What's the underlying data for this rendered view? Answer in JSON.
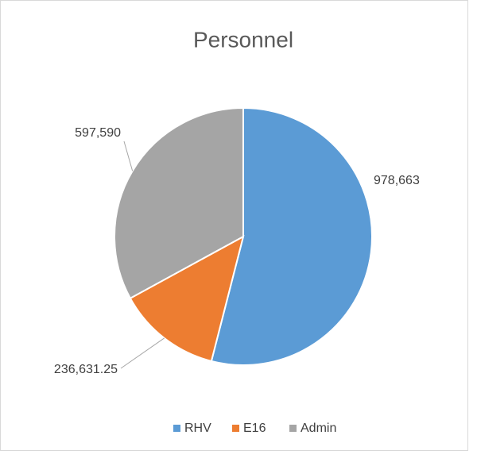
{
  "chart_data": {
    "type": "pie",
    "title": "Personnel",
    "categories": [
      "RHV",
      "E16",
      "Admin"
    ],
    "values": [
      978663,
      236631.25,
      597590
    ],
    "value_labels": [
      "978,663",
      "236,631.25",
      "597,590"
    ],
    "colors": [
      "#5b9bd5",
      "#ed7d31",
      "#a5a5a5"
    ],
    "legend": "bottom"
  }
}
